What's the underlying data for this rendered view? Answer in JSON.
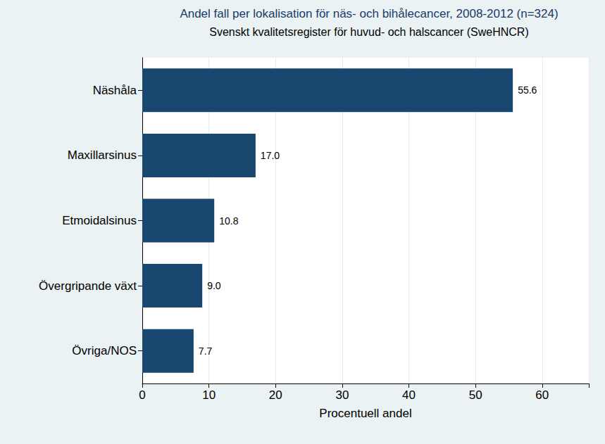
{
  "chart_data": {
    "type": "bar",
    "title": "Andel fall per lokalisation för näs- och bihålecancer, 2008-2012 (n=324)",
    "subtitle": "Svenskt kvalitetsregister för huvud- och halscancer (SweHNCR)",
    "x_label": "Procentuell andel",
    "orientation": "horizontal",
    "categories": [
      "Näshåla",
      "Maxillarsinus",
      "Etmoidalsinus",
      "Övergripande växt",
      "Övriga/NOS"
    ],
    "values": [
      55.6,
      17.0,
      10.8,
      9.0,
      7.7
    ],
    "value_labels": [
      "55.6",
      "17.0",
      "10.8",
      "9.0",
      "7.7"
    ],
    "color": "#1a476f",
    "xlim": [
      0,
      67
    ],
    "xticks": [
      0,
      10,
      20,
      30,
      40,
      50,
      60
    ],
    "grid": true,
    "data_labels": true
  }
}
